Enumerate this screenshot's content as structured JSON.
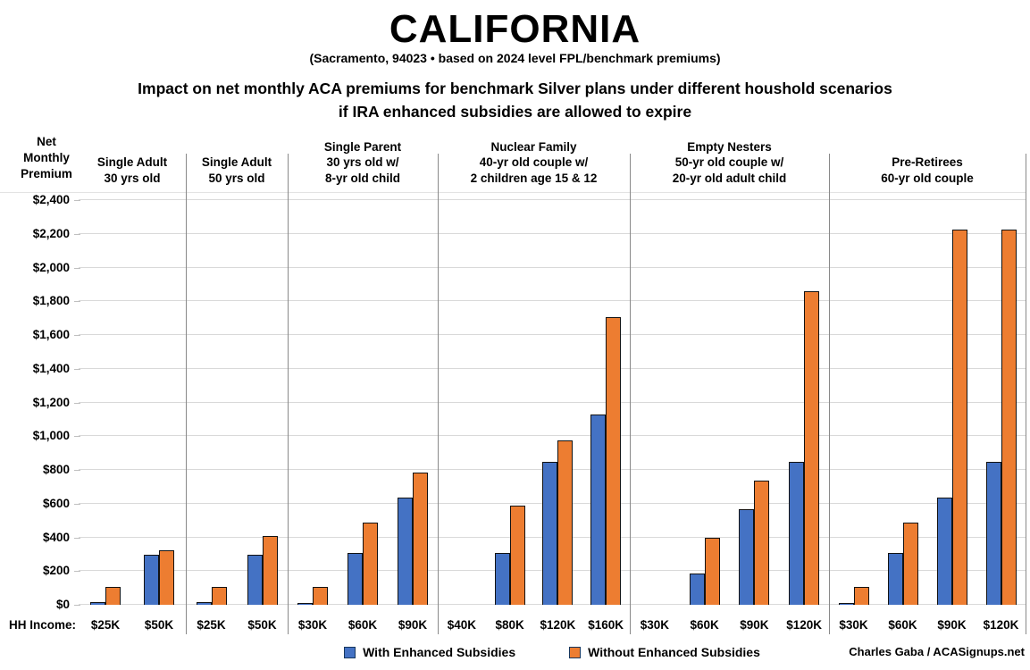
{
  "title": "CALIFORNIA",
  "location_line": "(Sacramento, 94023 • based on 2024 level FPL/benchmark premiums)",
  "subtitle_line1": "Impact on net monthly ACA premiums for benchmark Silver plans under different houshold scenarios",
  "subtitle_line2": "if IRA enhanced subsidies are allowed to expire",
  "y_axis_title": "Net\nMonthly\nPremium",
  "hh_income_label": "HH Income:",
  "credit": "Charles Gaba / ACASignups.net",
  "legend": [
    {
      "label": "With Enhanced Subsidies",
      "color": "#4472C4"
    },
    {
      "label": "Without Enhanced Subsidies",
      "color": "#ED7D31"
    }
  ],
  "colors": {
    "with_enhanced": "#4472C4",
    "without_enhanced": "#ED7D31",
    "gridline": "#d9d9d9",
    "separator": "#898989",
    "bar_border": "#121212"
  },
  "chart_data": {
    "type": "bar",
    "title": "Impact on net monthly ACA premiums for benchmark Silver plans under different houshold scenarios if IRA enhanced subsidies are allowed to expire",
    "xlabel": "HH Income",
    "ylabel": "Net Monthly Premium",
    "ylim": [
      0,
      2400
    ],
    "ytick_step": 200,
    "ytick_labels": [
      "$0",
      "$200",
      "$400",
      "$600",
      "$800",
      "$1,000",
      "$1,200",
      "$1,400",
      "$1,600",
      "$1,800",
      "$2,000",
      "$2,200",
      "$2,400"
    ],
    "grid": true,
    "legend_position": "bottom",
    "series_names": [
      "With Enhanced Subsidies",
      "Without Enhanced Subsidies"
    ],
    "series_colors": [
      "#4472C4",
      "#ED7D31"
    ],
    "groups": [
      {
        "label_lines": [
          "Single Adult",
          "30 yrs old"
        ],
        "incomes": [
          "$25K",
          "$50K"
        ],
        "with_enhanced": [
          15,
          295
        ],
        "without_enhanced": [
          105,
          325
        ]
      },
      {
        "label_lines": [
          "Single Adult",
          "50 yrs old"
        ],
        "incomes": [
          "$25K",
          "$50K"
        ],
        "with_enhanced": [
          15,
          295
        ],
        "without_enhanced": [
          105,
          410
        ]
      },
      {
        "label_lines": [
          "Single Parent",
          "30 yrs old w/",
          "8-yr old child"
        ],
        "incomes": [
          "$30K",
          "$60K",
          "$90K"
        ],
        "with_enhanced": [
          5,
          305,
          635
        ],
        "without_enhanced": [
          105,
          490,
          785
        ]
      },
      {
        "label_lines": [
          "Nuclear Family",
          "40-yr old couple w/",
          "2 children age 15 & 12"
        ],
        "incomes": [
          "$40K",
          "$80K",
          "$120K",
          "$160K"
        ],
        "with_enhanced": [
          0,
          310,
          850,
          1130
        ],
        "without_enhanced": [
          0,
          590,
          975,
          1705
        ]
      },
      {
        "label_lines": [
          "Empty Nesters",
          "50-yr old couple w/",
          "20-yr old adult child"
        ],
        "incomes": [
          "$30K",
          "$60K",
          "$90K",
          "$120K"
        ],
        "with_enhanced": [
          0,
          185,
          565,
          850
        ],
        "without_enhanced": [
          0,
          400,
          735,
          1860
        ]
      },
      {
        "label_lines": [
          "Pre-Retirees",
          "60-yr old couple"
        ],
        "incomes": [
          "$30K",
          "$60K",
          "$90K",
          "$120K"
        ],
        "with_enhanced": [
          5,
          305,
          635,
          850
        ],
        "without_enhanced": [
          105,
          490,
          2225,
          2225
        ]
      }
    ]
  }
}
